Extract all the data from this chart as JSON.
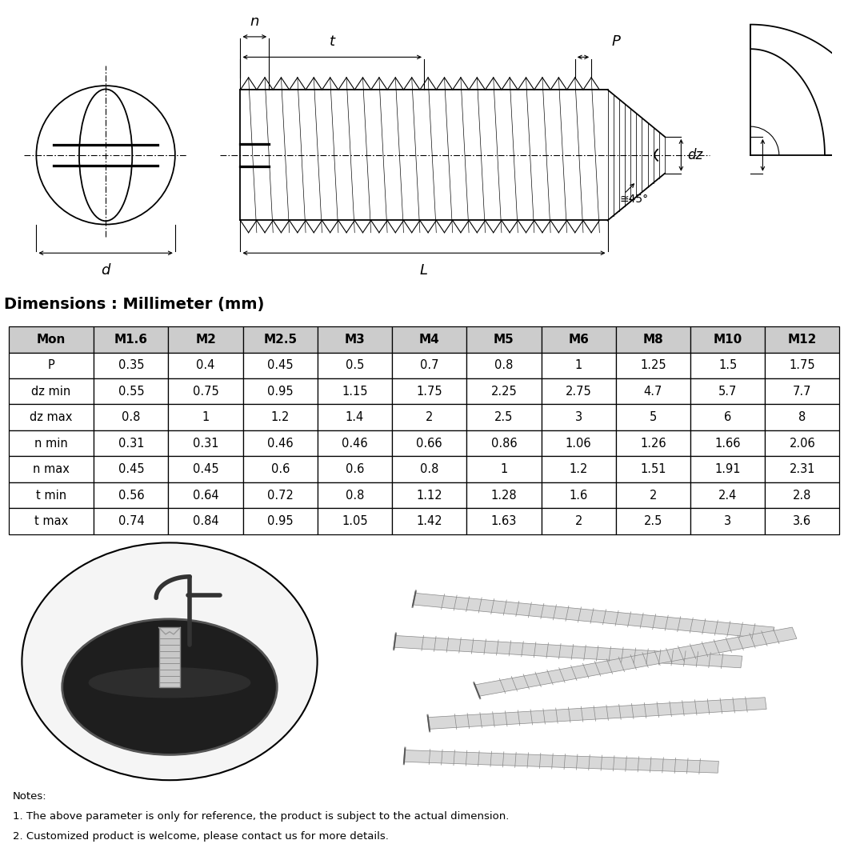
{
  "title": "Dimensions : Millimeter (mm)",
  "table_headers": [
    "Mon",
    "M1.6",
    "M2",
    "M2.5",
    "M3",
    "M4",
    "M5",
    "M6",
    "M8",
    "M10",
    "M12"
  ],
  "table_rows": [
    [
      "P",
      "0.35",
      "0.4",
      "0.45",
      "0.5",
      "0.7",
      "0.8",
      "1",
      "1.25",
      "1.5",
      "1.75"
    ],
    [
      "dz min",
      "0.55",
      "0.75",
      "0.95",
      "1.15",
      "1.75",
      "2.25",
      "2.75",
      "4.7",
      "5.7",
      "7.7"
    ],
    [
      "dz max",
      "0.8",
      "1",
      "1.2",
      "1.4",
      "2",
      "2.5",
      "3",
      "5",
      "6",
      "8"
    ],
    [
      "n min",
      "0.31",
      "0.31",
      "0.46",
      "0.46",
      "0.66",
      "0.86",
      "1.06",
      "1.26",
      "1.66",
      "2.06"
    ],
    [
      "n max",
      "0.45",
      "0.45",
      "0.6",
      "0.6",
      "0.8",
      "1",
      "1.2",
      "1.51",
      "1.91",
      "2.31"
    ],
    [
      "t min",
      "0.56",
      "0.64",
      "0.72",
      "0.8",
      "1.12",
      "1.28",
      "1.6",
      "2",
      "2.4",
      "2.8"
    ],
    [
      "t max",
      "0.74",
      "0.84",
      "0.95",
      "1.05",
      "1.42",
      "1.63",
      "2",
      "2.5",
      "3",
      "3.6"
    ]
  ],
  "notes": [
    "Notes:",
    "1. The above parameter is only for reference, the product is subject to the actual dimension.",
    "2. Customized product is welcome, please contact us for more details."
  ],
  "bg_color": "#ffffff",
  "line_color": "#000000"
}
